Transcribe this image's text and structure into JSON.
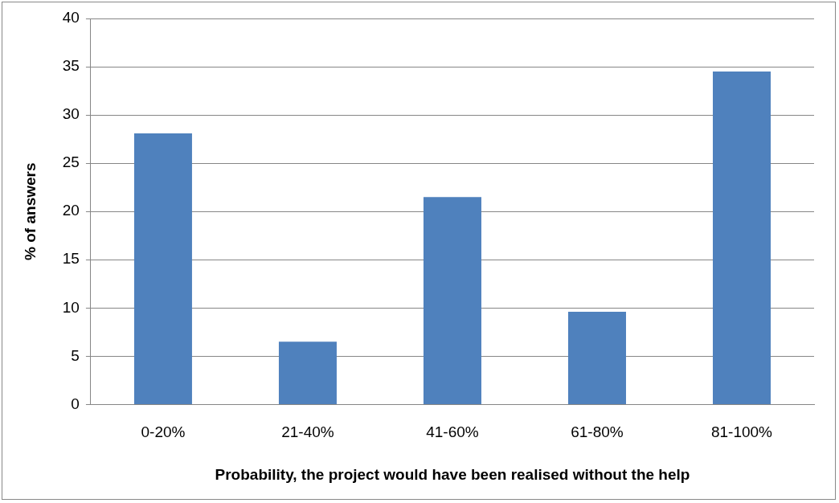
{
  "chart_data": {
    "type": "bar",
    "xlabel": "Probability, the project would have been realised without the help",
    "ylabel": "% of answers",
    "categories": [
      "0-20%",
      "21-40%",
      "41-60%",
      "61-80%",
      "81-100%"
    ],
    "values": [
      28.1,
      6.5,
      21.5,
      9.6,
      34.5
    ],
    "color": "#4f81bd",
    "ylim": [
      0,
      40
    ],
    "yticks": [
      0,
      5,
      10,
      15,
      20,
      25,
      30,
      35,
      40
    ],
    "grid": "y",
    "legend": false
  }
}
